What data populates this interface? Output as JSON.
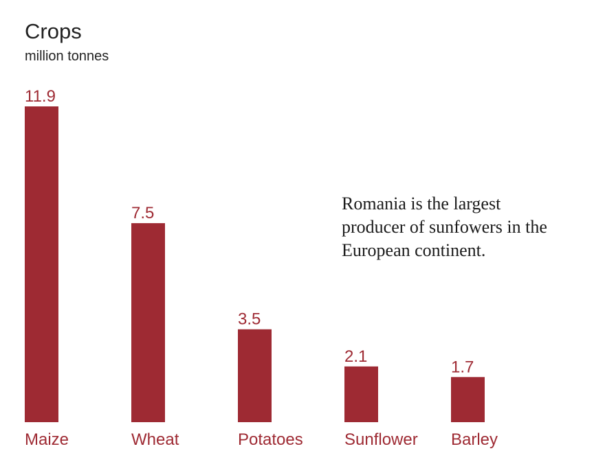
{
  "chart_data": {
    "type": "bar",
    "title": "Crops",
    "subtitle": "million tonnes",
    "categories": [
      "Maize",
      "Wheat",
      "Potatoes",
      "Sunflower",
      "Barley"
    ],
    "values": [
      11.9,
      7.5,
      3.5,
      2.1,
      1.7
    ],
    "color": "#9e2a33",
    "annotation": [
      "Romania is the largest",
      "producer of sunfowers in the",
      "European continent."
    ]
  }
}
